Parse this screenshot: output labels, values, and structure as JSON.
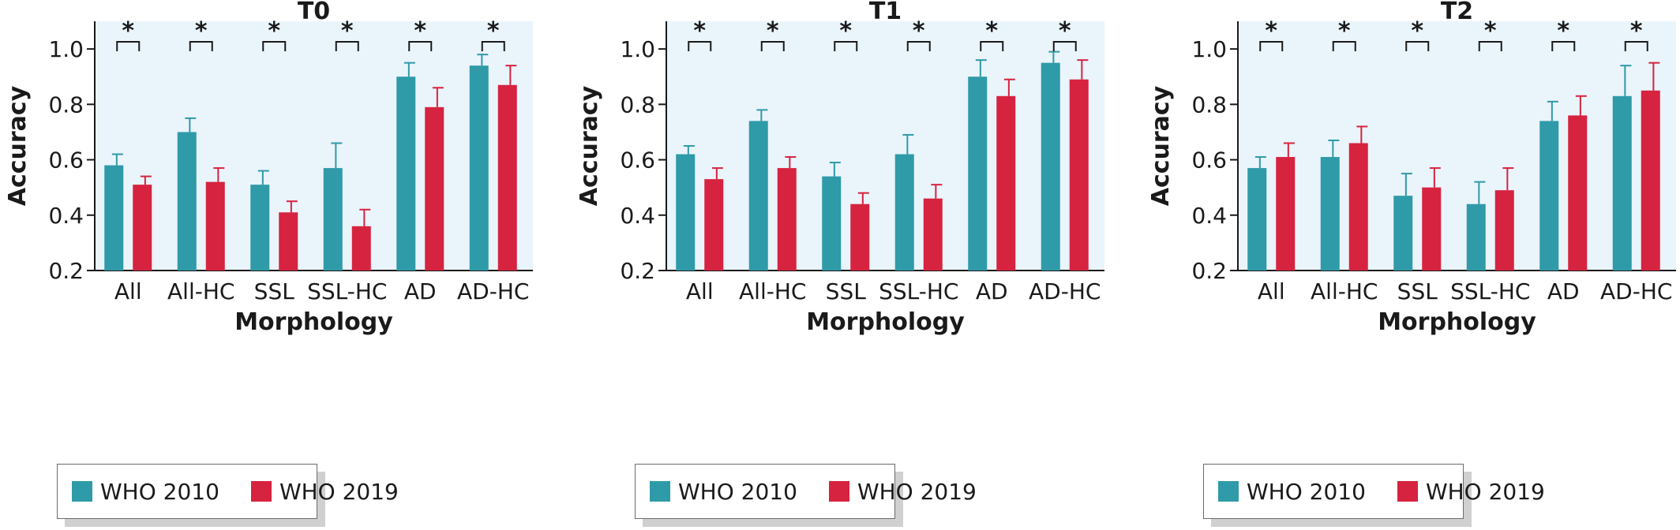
{
  "colors": {
    "who2010": "#2f9aa8",
    "who2019": "#d6233f",
    "plot_bg": "#eaf4fb"
  },
  "chart_data": [
    {
      "type": "bar",
      "title": "T0",
      "xlabel": "Morphology",
      "ylabel": "Accuracy",
      "ylim": [
        0.2,
        1.1
      ],
      "yticks": [
        "0.2",
        "0.4",
        "0.6",
        "0.8",
        "1.0"
      ],
      "categories": [
        "All",
        "All-HC",
        "SSL",
        "SSL-HC",
        "AD",
        "AD-HC"
      ],
      "series": [
        {
          "name": "WHO 2010",
          "values": [
            0.58,
            0.7,
            0.51,
            0.57,
            0.9,
            0.94
          ],
          "errors": [
            0.04,
            0.05,
            0.05,
            0.09,
            0.05,
            0.04
          ]
        },
        {
          "name": "WHO 2019",
          "values": [
            0.51,
            0.52,
            0.41,
            0.36,
            0.79,
            0.87
          ],
          "errors": [
            0.03,
            0.05,
            0.04,
            0.06,
            0.07,
            0.07
          ]
        }
      ],
      "significance": [
        "*",
        "*",
        "*",
        "*",
        "*",
        "*"
      ],
      "legend_position": "bottom"
    },
    {
      "type": "bar",
      "title": "T1",
      "xlabel": "Morphology",
      "ylabel": "Accuracy",
      "ylim": [
        0.2,
        1.1
      ],
      "yticks": [
        "0.2",
        "0.4",
        "0.6",
        "0.8",
        "1.0"
      ],
      "categories": [
        "All",
        "All-HC",
        "SSL",
        "SSL-HC",
        "AD",
        "AD-HC"
      ],
      "series": [
        {
          "name": "WHO 2010",
          "values": [
            0.62,
            0.74,
            0.54,
            0.62,
            0.9,
            0.95
          ],
          "errors": [
            0.03,
            0.04,
            0.05,
            0.07,
            0.06,
            0.04
          ]
        },
        {
          "name": "WHO 2019",
          "values": [
            0.53,
            0.57,
            0.44,
            0.46,
            0.83,
            0.89
          ],
          "errors": [
            0.04,
            0.04,
            0.04,
            0.05,
            0.06,
            0.07
          ]
        }
      ],
      "significance": [
        "*",
        "*",
        "*",
        "*",
        "*",
        "*"
      ],
      "legend_position": "bottom"
    },
    {
      "type": "bar",
      "title": "T2",
      "xlabel": "Morphology",
      "ylabel": "Accuracy",
      "ylim": [
        0.2,
        1.1
      ],
      "yticks": [
        "0.2",
        "0.4",
        "0.6",
        "0.8",
        "1.0"
      ],
      "categories": [
        "All",
        "All-HC",
        "SSL",
        "SSL-HC",
        "AD",
        "AD-HC"
      ],
      "series": [
        {
          "name": "WHO 2010",
          "values": [
            0.57,
            0.61,
            0.47,
            0.44,
            0.74,
            0.83
          ],
          "errors": [
            0.04,
            0.06,
            0.08,
            0.08,
            0.07,
            0.11
          ]
        },
        {
          "name": "WHO 2019",
          "values": [
            0.61,
            0.66,
            0.5,
            0.49,
            0.76,
            0.85
          ],
          "errors": [
            0.05,
            0.06,
            0.07,
            0.08,
            0.07,
            0.1
          ]
        }
      ],
      "significance": [
        "*",
        "*",
        "*",
        "*",
        "*",
        "*"
      ],
      "legend_position": "bottom"
    }
  ]
}
